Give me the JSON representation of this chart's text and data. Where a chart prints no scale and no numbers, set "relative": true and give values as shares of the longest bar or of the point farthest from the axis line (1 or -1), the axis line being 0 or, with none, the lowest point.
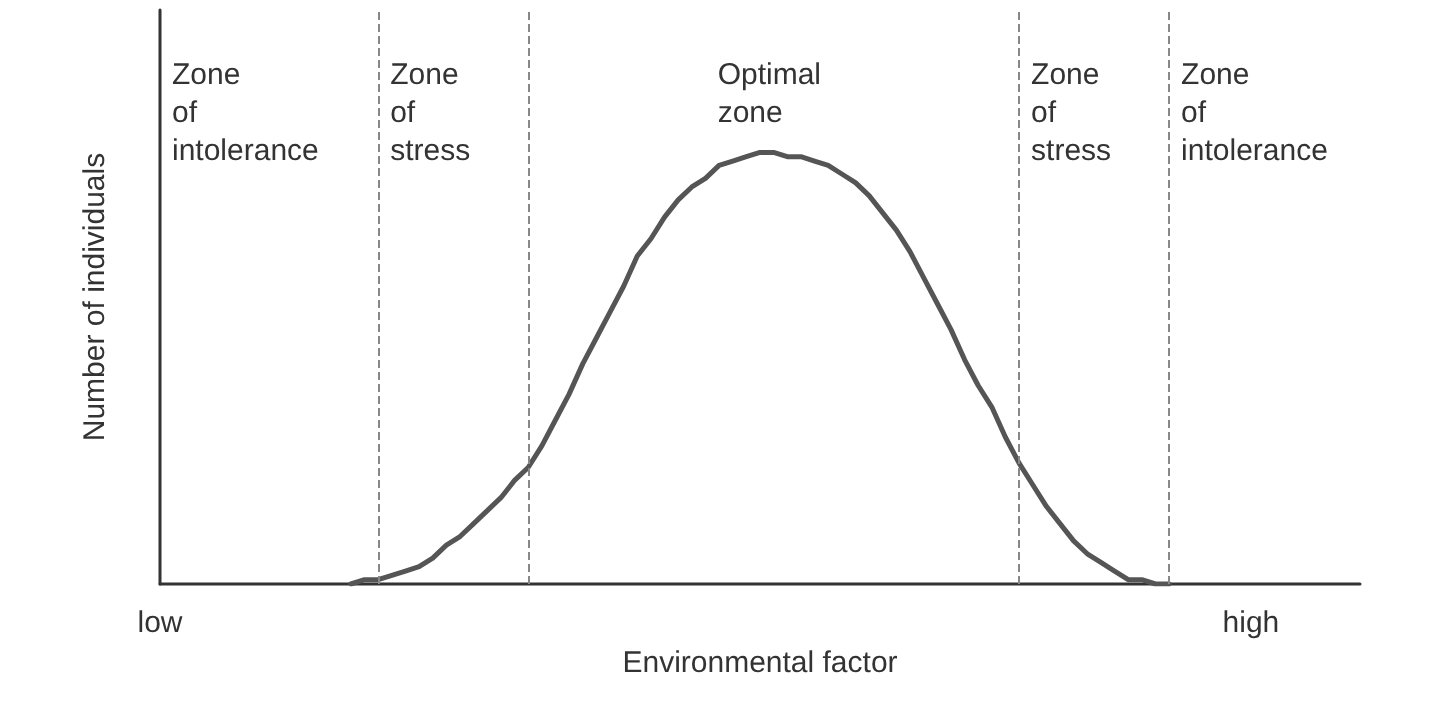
{
  "chart_data": {
    "type": "line",
    "relative": true,
    "xlabel": "Environmental factor",
    "ylabel": "Number of individuals",
    "categories": [
      "low",
      null,
      null,
      null,
      null,
      null,
      null,
      null,
      null,
      null,
      null,
      null,
      null,
      null,
      null,
      null,
      null,
      null,
      null,
      null,
      null,
      null,
      null,
      null,
      null,
      null,
      null,
      null,
      null,
      null,
      null,
      null,
      null,
      null,
      null,
      null,
      null,
      null,
      null,
      null,
      null,
      null,
      null,
      null,
      null,
      null,
      null,
      null,
      null,
      null,
      null,
      null,
      null,
      null,
      null,
      null,
      null,
      null,
      null,
      null,
      null,
      null,
      null,
      null,
      null,
      null,
      null,
      null,
      null,
      null,
      null,
      null,
      null,
      null,
      null,
      null,
      null,
      null,
      null,
      null,
      "high",
      null,
      null,
      null,
      null,
      null,
      null,
      null,
      null
    ],
    "series": [
      {
        "color": "#555555",
        "values": [
          null,
          null,
          null,
          null,
          null,
          null,
          null,
          null,
          null,
          null,
          null,
          null,
          null,
          null,
          0,
          0.01,
          0.01,
          0.02,
          0.03,
          0.04,
          0.06,
          0.09,
          0.11,
          0.14,
          0.17,
          0.2,
          0.24,
          0.27,
          0.32,
          0.38,
          0.44,
          0.51,
          0.57,
          0.63,
          0.69,
          0.76,
          0.8,
          0.85,
          0.89,
          0.92,
          0.94,
          0.97,
          0.98,
          0.99,
          1,
          1,
          0.99,
          0.99,
          0.98,
          0.97,
          0.95,
          0.93,
          0.9,
          0.86,
          0.82,
          0.77,
          0.71,
          0.65,
          0.59,
          0.52,
          0.46,
          0.41,
          0.34,
          0.28,
          0.23,
          0.18,
          0.14,
          0.1,
          0.07,
          0.05,
          0.03,
          0.01,
          0.01,
          0,
          0,
          null,
          null,
          null,
          null,
          null,
          null,
          null,
          null,
          null,
          null,
          null,
          null,
          null,
          null
        ]
      }
    ],
    "annotations": [
      "Zone of intolerance",
      "Zone of stress",
      "Optimal zone",
      "Zone of stress",
      "Zone of intolerance"
    ],
    "grid": false,
    "marker": "none",
    "line_style": "solid"
  }
}
